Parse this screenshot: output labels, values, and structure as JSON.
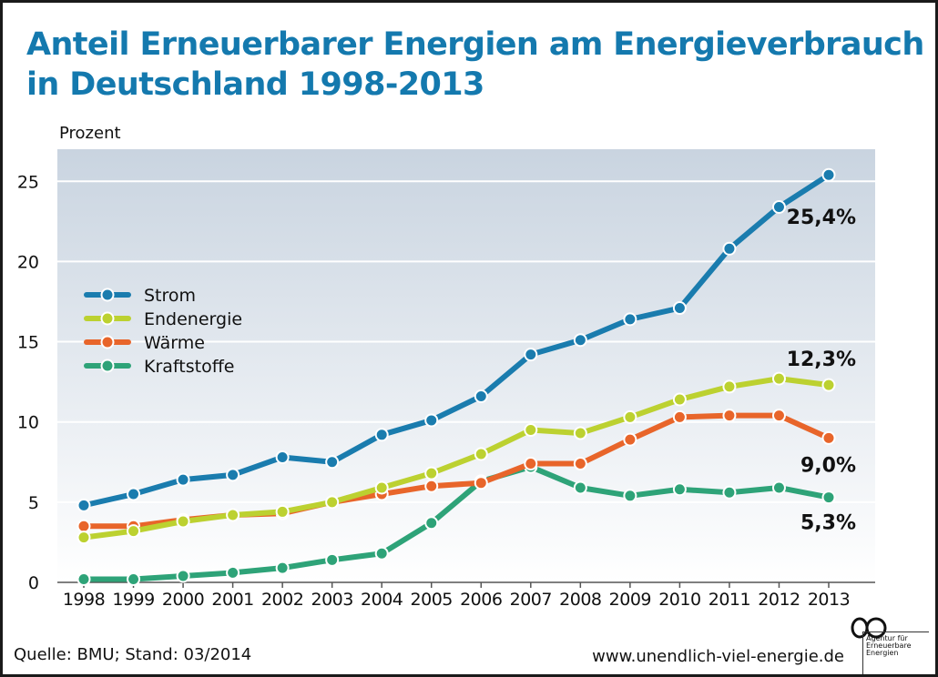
{
  "title": {
    "line1": "Anteil Erneuerbarer Energien am Energieverbrauch",
    "line2": "in Deutschland 1998-2013"
  },
  "footer": {
    "source": "Quelle: BMU; Stand: 03/2014",
    "url": "www.unendlich-viel-energie.de"
  },
  "logo": {
    "symbol": "infinity-icon",
    "lines": [
      "Agentur für",
      "Erneuerbare",
      "Energien"
    ]
  },
  "colors": {
    "title": "#1479ae",
    "plot_gradient_top": "#c9d4e0",
    "plot_gradient_bottom": "#ffffff"
  },
  "chart_data": {
    "type": "line",
    "title": "Anteil Erneuerbarer Energien am Energieverbrauch in Deutschland 1998-2013",
    "ylabel": "Prozent",
    "xlabel": "",
    "ylim": [
      0,
      27
    ],
    "yticks": [
      0,
      5,
      10,
      15,
      20,
      25
    ],
    "grid": true,
    "legend_position": "upper-left",
    "x": [
      "1998",
      "1999",
      "2000",
      "2001",
      "2002",
      "2003",
      "2004",
      "2005",
      "2006",
      "2007",
      "2008",
      "2009",
      "2010",
      "2011",
      "2012",
      "2013"
    ],
    "series": [
      {
        "name": "Strom",
        "color": "#1a7cae",
        "values": [
          4.8,
          5.5,
          6.4,
          6.7,
          7.8,
          7.5,
          9.2,
          10.1,
          11.6,
          14.2,
          15.1,
          16.4,
          17.1,
          20.8,
          23.4,
          25.4
        ],
        "end_label": "25,4%"
      },
      {
        "name": "Endenergie",
        "color": "#bcd130",
        "values": [
          2.8,
          3.2,
          3.8,
          4.2,
          4.4,
          5.0,
          5.9,
          6.8,
          8.0,
          9.5,
          9.3,
          10.3,
          11.4,
          12.2,
          12.7,
          12.3
        ],
        "end_label": "12,3%"
      },
      {
        "name": "Wärme",
        "color": "#e8652a",
        "values": [
          3.5,
          3.5,
          3.9,
          4.2,
          4.3,
          5.0,
          5.5,
          6.0,
          6.2,
          7.4,
          7.4,
          8.9,
          10.3,
          10.4,
          10.4,
          9.0
        ],
        "end_label": "9,0%"
      },
      {
        "name": "Kraftstoffe",
        "color": "#2ea378",
        "values": [
          0.2,
          0.2,
          0.4,
          0.6,
          0.9,
          1.4,
          1.8,
          3.7,
          6.3,
          7.2,
          5.9,
          5.4,
          5.8,
          5.6,
          5.9,
          5.3
        ],
        "end_label": "5,3%"
      }
    ]
  }
}
